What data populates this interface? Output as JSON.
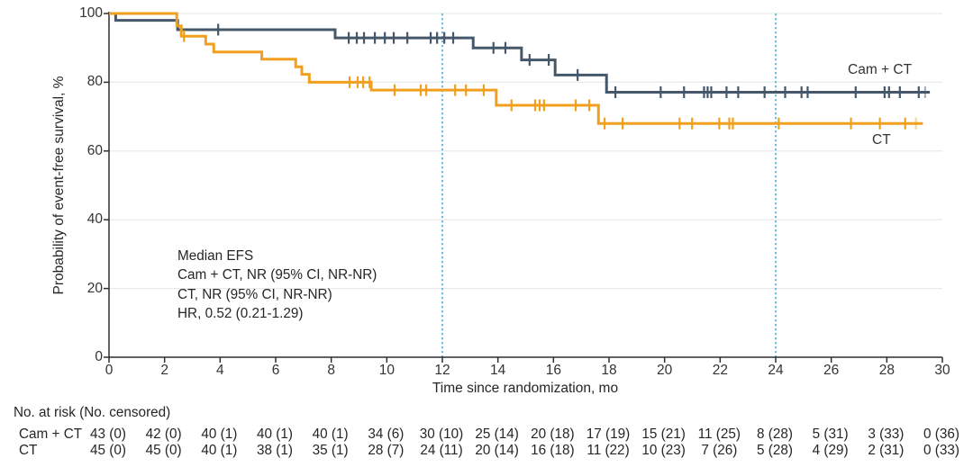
{
  "chart_data": {
    "type": "line",
    "subtype": "kaplan-meier-step",
    "title": "",
    "xlabel": "Time since randomization, mo",
    "ylabel": "Probability of event-free survival, %",
    "xlim": [
      0,
      30
    ],
    "ylim": [
      0,
      100
    ],
    "xticks": [
      0,
      2,
      4,
      6,
      8,
      10,
      12,
      14,
      16,
      18,
      20,
      22,
      24,
      26,
      28,
      30
    ],
    "yticks": [
      0,
      20,
      40,
      60,
      80,
      100
    ],
    "grid": "horizontal",
    "grid_color": "#e9e9e9",
    "axis_color": "#2f2f2f",
    "reference_lines": {
      "x": [
        12,
        24
      ],
      "color": "#55b7e5",
      "style": "dotted"
    },
    "series": [
      {
        "name": "Cam + CT",
        "color": "#45586a",
        "steps": [
          [
            0,
            100
          ],
          [
            0.24,
            98.0
          ],
          [
            2.47,
            95.3
          ],
          [
            8.14,
            92.9
          ],
          [
            13.11,
            90.0
          ],
          [
            14.85,
            86.5
          ],
          [
            16.06,
            82.1
          ],
          [
            17.91,
            77.1
          ]
        ],
        "end": 29.55,
        "censors": [
          [
            3.93,
            95.3
          ],
          [
            8.63,
            92.9
          ],
          [
            8.92,
            92.9
          ],
          [
            9.18,
            92.9
          ],
          [
            9.57,
            92.9
          ],
          [
            9.93,
            92.9
          ],
          [
            10.25,
            92.9
          ],
          [
            10.74,
            92.9
          ],
          [
            11.58,
            92.9
          ],
          [
            11.81,
            92.9
          ],
          [
            12.07,
            92.9
          ],
          [
            12.39,
            92.9
          ],
          [
            13.84,
            90.0
          ],
          [
            14.27,
            90.0
          ],
          [
            15.14,
            86.5
          ],
          [
            15.83,
            86.5
          ],
          [
            16.87,
            82.1
          ],
          [
            18.23,
            77.1
          ],
          [
            19.86,
            77.1
          ],
          [
            20.7,
            77.1
          ],
          [
            21.42,
            77.1
          ],
          [
            21.55,
            77.1
          ],
          [
            21.68,
            77.1
          ],
          [
            22.23,
            77.1
          ],
          [
            22.65,
            77.1
          ],
          [
            23.6,
            77.1
          ],
          [
            24.34,
            77.1
          ],
          [
            24.93,
            77.1
          ],
          [
            25.15,
            77.1
          ],
          [
            26.88,
            77.1
          ],
          [
            27.92,
            77.1
          ],
          [
            28.08,
            77.1
          ],
          [
            28.47,
            77.1
          ],
          [
            29.15,
            77.1
          ]
        ],
        "faint_censors": [
          [
            29.38,
            77.1
          ]
        ]
      },
      {
        "name": "CT",
        "color": "#f0a01e",
        "steps": [
          [
            0,
            100
          ],
          [
            2.44,
            96.4
          ],
          [
            2.6,
            93.4
          ],
          [
            3.48,
            91.1
          ],
          [
            3.77,
            88.8
          ],
          [
            5.5,
            86.7
          ],
          [
            6.72,
            84.5
          ],
          [
            6.94,
            82.3
          ],
          [
            7.21,
            80.0
          ],
          [
            9.44,
            77.7
          ],
          [
            13.94,
            73.3
          ],
          [
            17.62,
            68.0
          ]
        ],
        "end": 29.3,
        "censors": [
          [
            2.7,
            93.4
          ],
          [
            8.66,
            80.0
          ],
          [
            8.95,
            80.0
          ],
          [
            9.15,
            80.0
          ],
          [
            9.38,
            80.0
          ],
          [
            10.28,
            77.7
          ],
          [
            11.22,
            77.7
          ],
          [
            11.42,
            77.7
          ],
          [
            12.46,
            77.7
          ],
          [
            12.85,
            77.7
          ],
          [
            13.49,
            77.7
          ],
          [
            14.49,
            73.3
          ],
          [
            15.34,
            73.3
          ],
          [
            15.5,
            73.3
          ],
          [
            15.66,
            73.3
          ],
          [
            16.8,
            73.3
          ],
          [
            17.29,
            73.3
          ],
          [
            17.84,
            68.0
          ],
          [
            18.49,
            68.0
          ],
          [
            20.54,
            68.0
          ],
          [
            20.99,
            68.0
          ],
          [
            21.97,
            68.0
          ],
          [
            22.33,
            68.0
          ],
          [
            22.46,
            68.0
          ],
          [
            24.11,
            68.0
          ],
          [
            26.71,
            68.0
          ],
          [
            27.75,
            68.0
          ],
          [
            28.66,
            68.0
          ]
        ],
        "faint_censors": [
          [
            29.05,
            68.0
          ]
        ]
      }
    ],
    "annotation": {
      "lines": [
        "Median EFS",
        "Cam + CT, NR (95% CI, NR-NR)",
        "CT, NR (95% CI, NR-NR)",
        "HR, 0.52 (0.21-1.29)"
      ]
    },
    "risk_table": {
      "header": "No. at risk (No. censored)",
      "times": [
        0,
        2,
        4,
        6,
        8,
        10,
        12,
        14,
        16,
        18,
        20,
        22,
        24,
        26,
        28,
        30
      ],
      "rows": [
        {
          "label": "Cam + CT",
          "values": [
            "43 (0)",
            "42 (0)",
            "40 (1)",
            "40 (1)",
            "40 (1)",
            "34 (6)",
            "30 (10)",
            "25 (14)",
            "20 (18)",
            "17 (19)",
            "15 (21)",
            "11 (25)",
            "8 (28)",
            "5 (31)",
            "3 (33)",
            "0 (36)"
          ]
        },
        {
          "label": "CT",
          "values": [
            "45 (0)",
            "45 (0)",
            "40 (1)",
            "38 (1)",
            "35 (1)",
            "28 (7)",
            "24 (11)",
            "20 (14)",
            "16 (18)",
            "11 (22)",
            "10 (23)",
            "7 (26)",
            "5 (28)",
            "4 (29)",
            "2 (31)",
            "0 (33)"
          ]
        }
      ]
    }
  }
}
